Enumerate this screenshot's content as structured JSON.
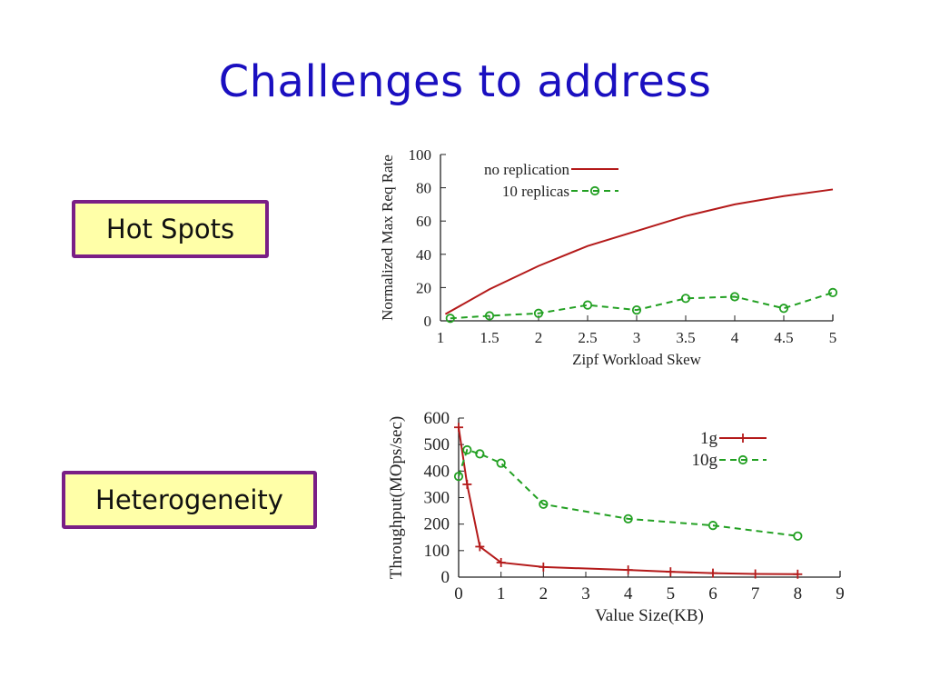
{
  "slide": {
    "title": "Challenges to address",
    "labels": {
      "hot_spots": "Hot Spots",
      "heterogeneity": "Heterogeneity"
    }
  },
  "colors": {
    "title": "#1a0fc0",
    "box_fill": "#ffffa8",
    "box_border": "#7a1f86",
    "series_red": "#b41a1a",
    "series_green": "#22a022"
  },
  "chart_data": [
    {
      "type": "line",
      "title": "",
      "xlabel": "Zipf Workload Skew",
      "ylabel": "Normalized Max Req Rate",
      "xlim": [
        1,
        5
      ],
      "ylim": [
        0,
        100
      ],
      "xticks": [
        "1",
        "1.5",
        "2",
        "2.5",
        "3",
        "3.5",
        "4",
        "4.5",
        "5"
      ],
      "yticks": [
        "0",
        "20",
        "40",
        "60",
        "80",
        "100"
      ],
      "legend": "top-left",
      "series": [
        {
          "name": "no replication",
          "style": "solid",
          "marker": "none",
          "x": [
            1.05,
            1.5,
            2,
            2.5,
            3,
            3.5,
            4,
            4.5,
            5
          ],
          "y": [
            4,
            19,
            33,
            45,
            54,
            63,
            70,
            75,
            79
          ]
        },
        {
          "name": "10 replicas",
          "style": "dashed",
          "marker": "circle",
          "x": [
            1.1,
            1.5,
            2,
            2.5,
            3,
            3.5,
            4,
            4.5,
            5
          ],
          "y": [
            1.5,
            3,
            4.5,
            9.5,
            6.5,
            13.5,
            14.5,
            7.5,
            17
          ]
        }
      ]
    },
    {
      "type": "line",
      "title": "",
      "xlabel": "Value Size(KB)",
      "ylabel": "Throughput(MOps/sec)",
      "xlim": [
        0,
        9
      ],
      "ylim": [
        0,
        600
      ],
      "xticks": [
        "0",
        "1",
        "2",
        "3",
        "4",
        "5",
        "6",
        "7",
        "8",
        "9"
      ],
      "yticks": [
        "0",
        "100",
        "200",
        "300",
        "400",
        "500",
        "600"
      ],
      "legend": "top-right",
      "series": [
        {
          "name": "1g",
          "style": "solid",
          "marker": "plus",
          "x": [
            0,
            0.2,
            0.5,
            1,
            2,
            4,
            5,
            6,
            7,
            8
          ],
          "y": [
            565,
            350,
            115,
            55,
            38,
            27,
            20,
            15,
            12,
            11
          ]
        },
        {
          "name": "10g",
          "style": "dashed",
          "marker": "circle",
          "x": [
            0,
            0.2,
            0.5,
            1,
            2,
            4,
            6,
            8
          ],
          "y": [
            380,
            480,
            465,
            430,
            275,
            220,
            195,
            155
          ]
        }
      ]
    }
  ]
}
